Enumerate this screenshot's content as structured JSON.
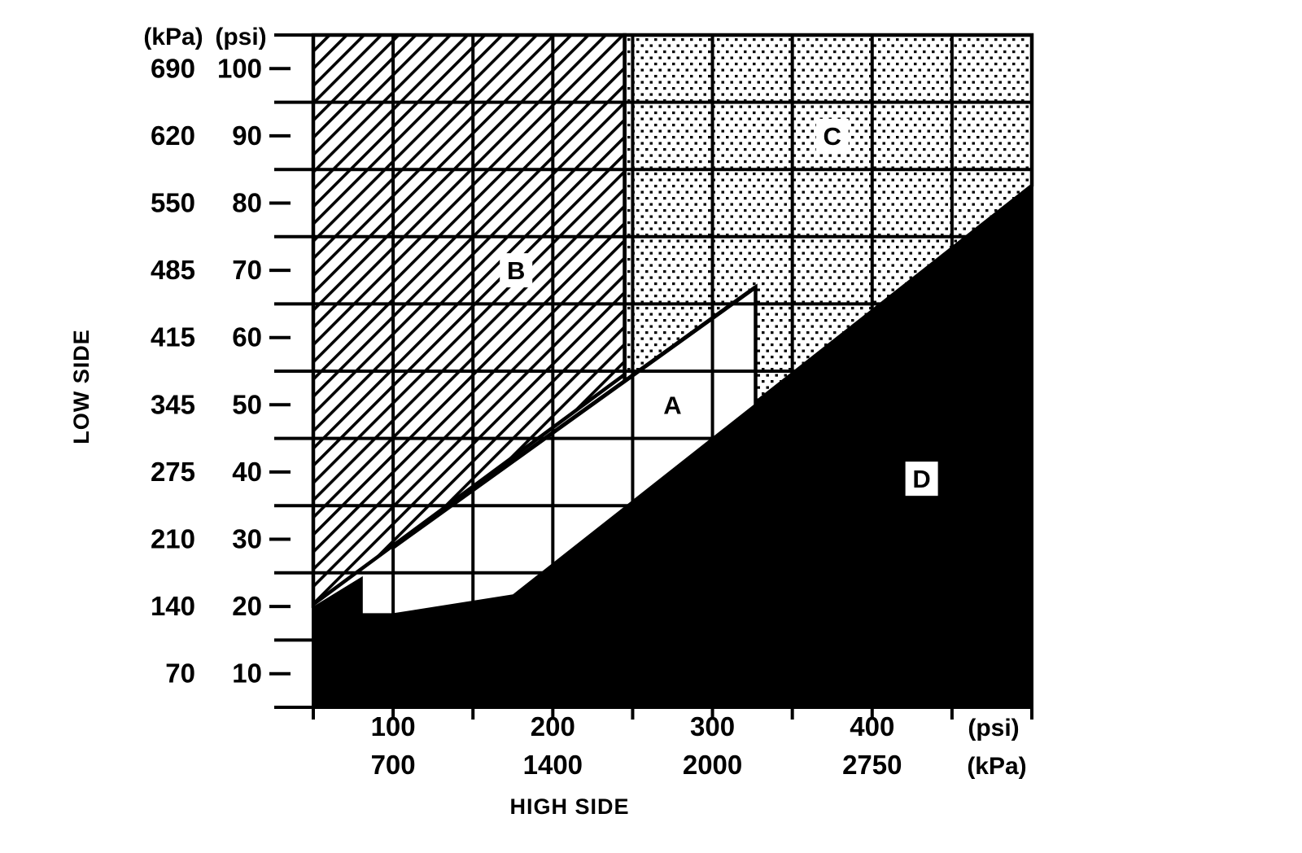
{
  "chart_data": {
    "type": "area",
    "title": "",
    "xlabel": "HIGH SIDE",
    "ylabel": "LOW SIDE",
    "colors": {
      "ink": "#000000",
      "background": "#ffffff"
    },
    "x_axis": {
      "title": "HIGH SIDE",
      "unit_row_psi": "(psi)",
      "unit_row_kpa": "(kPa)",
      "psi_tick_labels": [
        "100",
        "200",
        "300",
        "400"
      ],
      "psi_tick_values": [
        100,
        200,
        300,
        400
      ],
      "kpa_tick_labels": [
        "700",
        "1400",
        "2000",
        "2750"
      ],
      "minor_tick_psi": [
        50,
        100,
        150,
        200,
        250,
        300,
        350,
        400,
        450,
        500
      ],
      "range_psi": [
        50,
        500
      ]
    },
    "y_axis": {
      "title": "LOW SIDE",
      "unit_col_kpa": "(kPa)",
      "unit_col_psi": "(psi)",
      "kpa_tick_labels": [
        "690",
        "620",
        "550",
        "485",
        "415",
        "345",
        "275",
        "210",
        "140",
        "70"
      ],
      "psi_tick_labels": [
        "100",
        "90",
        "80",
        "70",
        "60",
        "50",
        "40",
        "30",
        "20",
        "10"
      ],
      "psi_tick_values": [
        100,
        90,
        80,
        70,
        60,
        50,
        40,
        30,
        20,
        10
      ],
      "gridline_psi": [
        95,
        85,
        75,
        65,
        55,
        45,
        35,
        25,
        15
      ],
      "range_psi": [
        5,
        105
      ]
    },
    "regions": [
      {
        "id": "A",
        "label": "A",
        "pattern": "none",
        "halo": false,
        "label_at_psi": [
          275,
          50
        ],
        "polygon_psi": null
      },
      {
        "id": "B",
        "label": "B",
        "pattern": "hatch",
        "halo": true,
        "label_at_psi": [
          177,
          70
        ],
        "polygon_psi": [
          [
            50,
            105
          ],
          [
            245,
            105
          ],
          [
            245,
            54.5
          ],
          [
            50,
            20.3
          ]
        ]
      },
      {
        "id": "C",
        "label": "C",
        "pattern": "dots",
        "halo": true,
        "label_at_psi": [
          375,
          90
        ],
        "polygon_psi": [
          [
            245,
            105
          ],
          [
            500,
            105
          ],
          [
            500,
            82.6
          ],
          [
            327,
            50.3
          ],
          [
            327,
            67.5
          ],
          [
            245,
            53.5
          ]
        ]
      },
      {
        "id": "D",
        "label": "D",
        "pattern": "solid",
        "halo": true,
        "label_at_psi": [
          431,
          39
        ],
        "polygon_psi": [
          [
            50,
            20
          ],
          [
            81,
            24.5
          ],
          [
            81,
            19
          ],
          [
            100,
            19
          ],
          [
            175,
            21.8
          ],
          [
            500,
            82.6
          ],
          [
            500,
            5
          ],
          [
            50,
            5
          ]
        ]
      }
    ],
    "ac_boundary_line_psi": [
      [
        100,
        28.8
      ],
      [
        327,
        67.5
      ]
    ]
  }
}
